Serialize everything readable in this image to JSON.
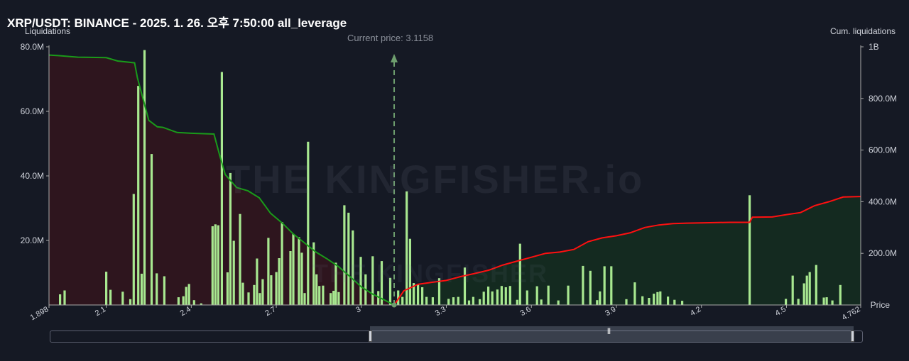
{
  "title": "XRP/USDT: BINANCE - 2025. 1. 26. 오후 7:50:00 all_leverage",
  "y_left_label": "Liquidations",
  "y_right_label": "Cum. liquidations",
  "x_label": "Price",
  "current_price_label": "Current price: 3.1158",
  "watermark": "THE KINGFISHER.io",
  "watermark_small": "THE KINGFISHER",
  "colors": {
    "bars": "#a8e890",
    "short_cum_line": "#ff1010",
    "long_cum_line": "#1a9a1a",
    "long_fill": "#2e151e",
    "short_fill": "#142a20",
    "background": "#151924"
  },
  "chart_data": {
    "type": "bar",
    "title": "XRP/USDT: BINANCE - 2025. 1. 26. 오후 7:50:00 all_leverage",
    "xlabel": "Price",
    "ylabel": "Liquidations",
    "y2label": "Cum. liquidations",
    "xlim": [
      1.898,
      4.762
    ],
    "ylim": [
      0,
      80000000
    ],
    "y2lim": [
      0,
      1000000000
    ],
    "x_ticks": [
      1.898,
      2.1,
      2.4,
      2.7,
      3,
      3.3,
      3.6,
      3.9,
      4.2,
      4.5,
      4.762
    ],
    "x_tick_labels": [
      "1.898",
      "2.1",
      "2.4",
      "2.7",
      "3",
      "3.3",
      "3.6",
      "3.9",
      "4.2",
      "4.5",
      "4.762"
    ],
    "y_ticks": [
      20000000,
      40000000,
      60000000,
      80000000
    ],
    "y_tick_labels": [
      "20.0M",
      "40.0M",
      "60.0M",
      "80.0M"
    ],
    "y2_ticks": [
      200000000,
      400000000,
      600000000,
      800000000,
      1000000000
    ],
    "y2_tick_labels": [
      "200.0M",
      "400.0M",
      "600.0M",
      "800.0M",
      "1B"
    ],
    "current_price": 3.1158,
    "grid": false,
    "series": [
      {
        "name": "Liquidations",
        "type": "bar",
        "x": [
          1.937,
          1.953,
          2.1,
          2.115,
          2.158,
          2.185,
          2.197,
          2.213,
          2.225,
          2.235,
          2.26,
          2.278,
          2.305,
          2.355,
          2.372,
          2.382,
          2.392,
          2.41,
          2.435,
          2.475,
          2.485,
          2.495,
          2.508,
          2.528,
          2.538,
          2.55,
          2.572,
          2.582,
          2.602,
          2.622,
          2.632,
          2.642,
          2.652,
          2.672,
          2.682,
          2.7,
          2.71,
          2.72,
          2.75,
          2.76,
          2.78,
          2.79,
          2.8,
          2.812,
          2.832,
          2.842,
          2.852,
          2.865,
          2.892,
          2.902,
          2.91,
          2.92,
          2.94,
          2.955,
          2.97,
          2.998,
          3.015,
          3.04,
          3.06,
          3.072,
          3.102,
          3.13,
          3.145,
          3.16,
          3.172,
          3.185,
          3.2,
          3.215,
          3.23,
          3.252,
          3.275,
          3.308,
          3.325,
          3.342,
          3.365,
          3.38,
          3.395,
          3.418,
          3.432,
          3.448,
          3.462,
          3.48,
          3.495,
          3.51,
          3.525,
          3.55,
          3.56,
          3.585,
          3.62,
          3.635,
          3.66,
          3.695,
          3.73,
          3.782,
          3.808,
          3.832,
          3.842,
          3.858,
          3.882,
          3.935,
          3.965,
          3.992,
          4.015,
          4.032,
          4.045,
          4.055,
          4.082,
          4.105,
          4.132,
          4.37,
          4.498,
          4.522,
          4.542,
          4.562,
          4.572,
          4.582,
          4.605,
          4.632,
          4.642,
          4.662,
          4.69
        ],
        "values": [
          3300000,
          4500000,
          10300000,
          4700000,
          4100000,
          1800000,
          34400000,
          67900000,
          9700000,
          79000000,
          46800000,
          9800000,
          8900000,
          2400000,
          2700000,
          5600000,
          6500000,
          1500000,
          500000,
          24400000,
          25000000,
          24700000,
          72200000,
          10100000,
          40900000,
          19900000,
          28200000,
          6900000,
          3900000,
          6200000,
          14400000,
          3700000,
          8000000,
          20800000,
          9200000,
          10200000,
          14500000,
          25700000,
          16700000,
          22000000,
          21000000,
          16200000,
          3700000,
          50600000,
          19400000,
          9500000,
          5900000,
          6000000,
          3700000,
          4400000,
          13100000,
          4000000,
          30900000,
          28600000,
          23100000,
          14900000,
          9500000,
          15100000,
          4300000,
          13600000,
          8400000,
          4500000,
          2500000,
          35200000,
          20500000,
          6800000,
          6500000,
          5500000,
          2500000,
          2400000,
          8300000,
          1900000,
          2400000,
          2500000,
          11600000,
          1400000,
          2500000,
          1800000,
          4100000,
          5700000,
          4200000,
          4800000,
          5900000,
          5500000,
          5900000,
          1600000,
          19000000,
          4500000,
          5800000,
          1700000,
          6000000,
          1400000,
          6000000,
          12100000,
          10600000,
          1500000,
          4200000,
          12000000,
          12000000,
          1800000,
          7000000,
          2700000,
          2200000,
          3500000,
          4000000,
          4200000,
          2600000,
          1600000,
          1300000,
          34000000,
          1900000,
          9100000,
          1900000,
          6700000,
          9100000,
          10200000,
          12400000,
          2300000,
          2400000,
          1400000,
          6200000
        ]
      },
      {
        "name": "Cum. liquidations (longs)",
        "type": "line",
        "x": [
          1.898,
          1.93,
          2.0,
          2.1,
          2.14,
          2.2,
          2.21,
          2.25,
          2.28,
          2.3,
          2.35,
          2.4,
          2.48,
          2.5,
          2.52,
          2.56,
          2.6,
          2.64,
          2.68,
          2.72,
          2.76,
          2.8,
          2.84,
          2.88,
          2.92,
          2.96,
          3.0,
          3.04,
          3.08,
          3.1158
        ],
        "values": [
          968000000,
          966000000,
          960000000,
          958000000,
          945000000,
          938000000,
          880000000,
          715000000,
          690000000,
          688000000,
          668000000,
          665000000,
          662000000,
          580000000,
          505000000,
          455000000,
          442000000,
          415000000,
          355000000,
          318000000,
          275000000,
          240000000,
          205000000,
          178000000,
          148000000,
          110000000,
          70000000,
          42000000,
          20000000,
          0
        ]
      },
      {
        "name": "Cum. liquidations (shorts)",
        "type": "line",
        "x": [
          3.1158,
          3.15,
          3.2,
          3.25,
          3.3,
          3.35,
          3.4,
          3.45,
          3.5,
          3.55,
          3.6,
          3.65,
          3.7,
          3.75,
          3.8,
          3.85,
          3.9,
          3.95,
          4.0,
          4.05,
          4.1,
          4.15,
          4.2,
          4.3,
          4.37,
          4.38,
          4.45,
          4.5,
          4.55,
          4.6,
          4.65,
          4.7,
          4.762
        ],
        "values": [
          0,
          55000000,
          80000000,
          88000000,
          95000000,
          110000000,
          122000000,
          135000000,
          155000000,
          170000000,
          185000000,
          200000000,
          205000000,
          215000000,
          245000000,
          260000000,
          268000000,
          280000000,
          300000000,
          310000000,
          315000000,
          317000000,
          318000000,
          320000000,
          320000000,
          340000000,
          341000000,
          350000000,
          358000000,
          385000000,
          400000000,
          418000000,
          420000000
        ]
      }
    ]
  }
}
